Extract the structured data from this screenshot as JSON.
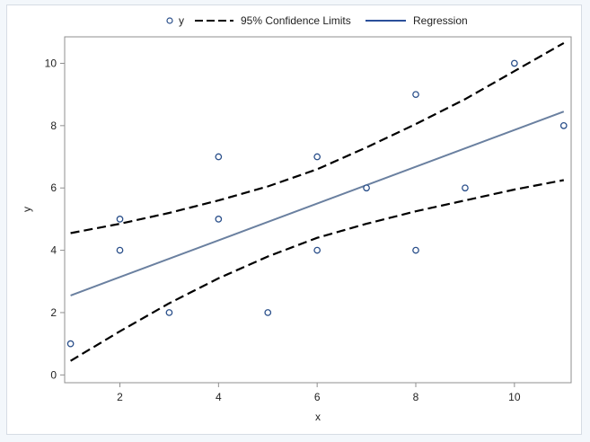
{
  "chart_data": {
    "type": "scatter",
    "title": "",
    "xlabel": "x",
    "ylabel": "y",
    "xlim": [
      0.88,
      11.15
    ],
    "ylim": [
      -0.25,
      10.85
    ],
    "xticks": [
      2,
      4,
      6,
      8,
      10
    ],
    "yticks": [
      0,
      2,
      4,
      6,
      8,
      10
    ],
    "grid": false,
    "legend_position": "top-center",
    "legend": [
      "y",
      "95% Confidence Limits",
      "Regression"
    ],
    "colors": {
      "points": "#2a4f8a",
      "regression": "#6a80a0",
      "confidence": "#000000",
      "legend_regression": "#2a4f9a"
    },
    "points": {
      "x": [
        1,
        2,
        2,
        3,
        4,
        4,
        5,
        6,
        6,
        7,
        8,
        8,
        9,
        10,
        11
      ],
      "y": [
        1,
        5,
        4,
        2,
        7,
        5,
        2,
        7,
        4,
        6,
        9,
        4,
        6,
        10,
        8
      ]
    },
    "regression": {
      "x": [
        1,
        11
      ],
      "y": [
        2.55,
        8.45
      ]
    },
    "upper_cl": {
      "x": [
        1,
        2,
        3,
        4,
        5,
        6,
        7,
        8,
        9,
        10,
        11
      ],
      "y": [
        4.55,
        4.85,
        5.2,
        5.6,
        6.05,
        6.6,
        7.3,
        8.05,
        8.85,
        9.75,
        10.65
      ]
    },
    "lower_cl": {
      "x": [
        1,
        2,
        3,
        4,
        5,
        6,
        7,
        8,
        9,
        10,
        11
      ],
      "y": [
        0.45,
        1.4,
        2.3,
        3.1,
        3.8,
        4.4,
        4.85,
        5.25,
        5.6,
        5.95,
        6.25
      ]
    }
  }
}
